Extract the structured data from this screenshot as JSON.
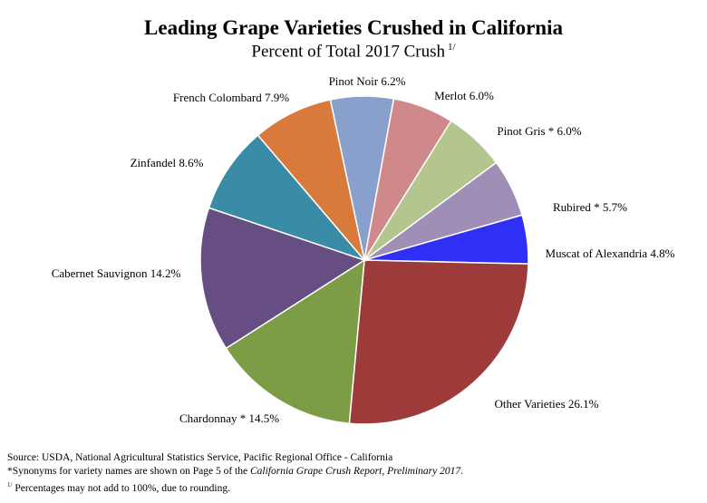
{
  "header": {
    "title": "Leading Grape Varieties Crushed in California",
    "subtitle": "Percent of Total 2017 Crush",
    "subtitle_footnote_mark": "1/"
  },
  "chart_data": {
    "type": "pie",
    "title": "Leading Grape Varieties Crushed in California",
    "subtitle": "Percent of Total 2017 Crush",
    "unit": "%",
    "slices": [
      {
        "name": "Pinot Noir",
        "value": 6.2,
        "label": "Pinot Noir  6.2%",
        "color": "#8aa0cc"
      },
      {
        "name": "Merlot",
        "value": 6.0,
        "label": "Merlot  6.0%",
        "color": "#d0898a"
      },
      {
        "name": "Pinot Gris *",
        "value": 6.0,
        "label": "Pinot Gris *  6.0%",
        "color": "#b3c68d"
      },
      {
        "name": "Rubired *",
        "value": 5.7,
        "label": "Rubired *  5.7%",
        "color": "#9f8fb6"
      },
      {
        "name": "Muscat of Alexandria",
        "value": 4.8,
        "label": "Muscat of Alexandria  4.8%",
        "color": "#2f2ff5"
      },
      {
        "name": "Other Varieties",
        "value": 26.1,
        "label": "Other Varieties 26.1%",
        "color": "#9d3b3b"
      },
      {
        "name": "Chardonnay *",
        "value": 14.5,
        "label": "Chardonnay *  14.5%",
        "color": "#7d9c46"
      },
      {
        "name": "Cabernet Sauvignon",
        "value": 14.2,
        "label": "Cabernet Sauvignon  14.2%",
        "color": "#664d82"
      },
      {
        "name": "Zinfandel",
        "value": 8.6,
        "label": "Zinfandel  8.6%",
        "color": "#3a8ca6"
      },
      {
        "name": "French Colombard",
        "value": 7.9,
        "label": "French Colombard  7.9%",
        "color": "#d87a3b"
      }
    ]
  },
  "footer": {
    "source": "Source: USDA, National Agricultural Statistics Service, Pacific  Regional  Office  - California",
    "synonyms_prefix": "*Synonyms for variety names are shown on Page 5 of the ",
    "synonyms_report": "California Grape Crush Report, Preliminary 2017",
    "synonyms_suffix": ".",
    "rounding_mark": "1/",
    "rounding_text": " Percentages may not add to 100%, due to rounding."
  }
}
